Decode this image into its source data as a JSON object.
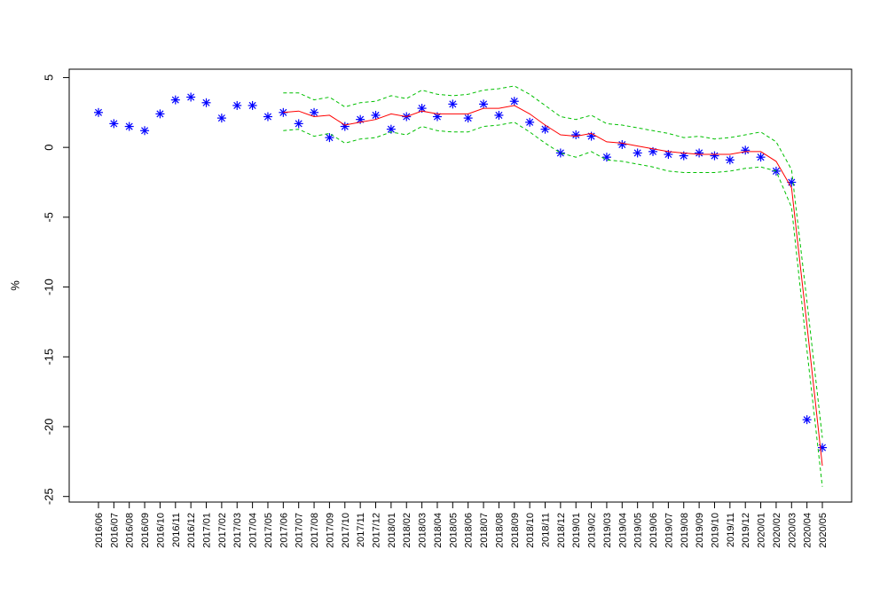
{
  "chart_data": {
    "type": "line",
    "y_label": "%",
    "categories": [
      "2016/06",
      "2016/07",
      "2016/08",
      "2016/09",
      "2016/10",
      "2016/11",
      "2016/12",
      "2017/01",
      "2017/02",
      "2017/03",
      "2017/04",
      "2017/05",
      "2017/06",
      "2017/07",
      "2017/08",
      "2017/09",
      "2017/10",
      "2017/11",
      "2017/12",
      "2018/01",
      "2018/02",
      "2018/03",
      "2018/04",
      "2018/05",
      "2018/06",
      "2018/07",
      "2018/08",
      "2018/09",
      "2018/10",
      "2018/11",
      "2018/12",
      "2019/01",
      "2019/02",
      "2019/03",
      "2019/04",
      "2019/05",
      "2019/06",
      "2019/07",
      "2019/08",
      "2019/09",
      "2019/10",
      "2019/11",
      "2019/12",
      "2020/01",
      "2020/02",
      "2020/03",
      "2020/04",
      "2020/05"
    ],
    "ylim": [
      -25.4,
      5.6
    ],
    "yticks": [
      -25,
      -20,
      -15,
      -10,
      -5,
      0,
      5
    ],
    "series": [
      {
        "color": "#0000ff",
        "style": "asterisk",
        "values": [
          2.5,
          1.7,
          1.5,
          1.2,
          2.4,
          3.4,
          3.6,
          3.2,
          2.1,
          3.0,
          3.0,
          2.2,
          2.5,
          1.7,
          2.5,
          0.7,
          1.5,
          2.0,
          2.3,
          1.3,
          2.2,
          2.8,
          2.2,
          3.1,
          2.1,
          3.1,
          2.3,
          3.3,
          1.8,
          1.3,
          -0.4,
          0.9,
          0.8,
          -0.7,
          0.2,
          -0.4,
          -0.3,
          -0.5,
          -0.6,
          -0.4,
          -0.6,
          -0.9,
          -0.2,
          -0.7,
          -1.7,
          -2.5,
          -19.5,
          -21.5
        ]
      },
      {
        "color": "#ff0000",
        "style": "solid",
        "values": [
          null,
          null,
          null,
          null,
          null,
          null,
          null,
          null,
          null,
          null,
          null,
          null,
          2.5,
          2.6,
          2.2,
          2.3,
          1.6,
          1.8,
          2.0,
          2.4,
          2.2,
          2.6,
          2.4,
          2.4,
          2.4,
          2.8,
          2.8,
          3.0,
          2.4,
          1.6,
          0.9,
          0.8,
          1.0,
          0.4,
          0.3,
          0.1,
          -0.1,
          -0.3,
          -0.4,
          -0.5,
          -0.5,
          -0.5,
          -0.3,
          -0.3,
          -1.0,
          -2.9,
          -12.7,
          -22.8
        ]
      },
      {
        "color": "#00c000",
        "style": "dashed",
        "values": [
          null,
          null,
          null,
          null,
          null,
          null,
          null,
          null,
          null,
          null,
          null,
          null,
          3.9,
          3.9,
          3.4,
          3.6,
          2.9,
          3.2,
          3.3,
          3.7,
          3.5,
          4.1,
          3.8,
          3.7,
          3.8,
          4.1,
          4.2,
          4.4,
          3.8,
          3.0,
          2.2,
          2.0,
          2.3,
          1.7,
          1.6,
          1.4,
          1.2,
          1.0,
          0.7,
          0.8,
          0.6,
          0.7,
          0.9,
          1.1,
          0.4,
          -1.6,
          -11.0,
          -20.8
        ]
      },
      {
        "color": "#00c000",
        "style": "dashed",
        "values": [
          null,
          null,
          null,
          null,
          null,
          null,
          null,
          null,
          null,
          null,
          null,
          null,
          1.2,
          1.3,
          0.8,
          1.0,
          0.3,
          0.6,
          0.7,
          1.1,
          0.9,
          1.5,
          1.2,
          1.1,
          1.1,
          1.5,
          1.6,
          1.8,
          1.1,
          0.3,
          -0.4,
          -0.7,
          -0.3,
          -0.9,
          -1.0,
          -1.2,
          -1.4,
          -1.7,
          -1.8,
          -1.8,
          -1.8,
          -1.7,
          -1.5,
          -1.4,
          -1.7,
          -4.3,
          -14.5,
          -24.3
        ]
      }
    ]
  }
}
